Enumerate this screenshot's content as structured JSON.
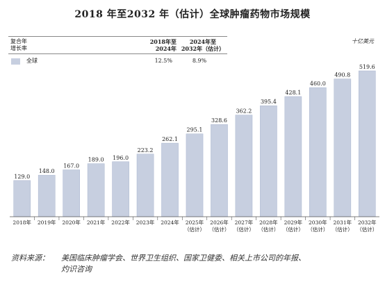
{
  "title": "2018 年至2032 年（估计）全球肿瘤药物市场规模",
  "unit": "十亿美元",
  "cagr_table": {
    "header_line1": "复合年",
    "header_line2": "增长率",
    "col1_line1": "2018年至",
    "col1_line2": "2024年",
    "col2_line1": "2024年至",
    "col2_line2": "2032年（估计）",
    "row_name": "全球",
    "row_val1": "12.5%",
    "row_val2": "8.9%"
  },
  "colors": {
    "bar": "#c7cfe0",
    "bar_edge": "#aab6cf",
    "axis": "#555555"
  },
  "chart_data": {
    "type": "bar",
    "categories": [
      {
        "l1": "2018年",
        "l2": ""
      },
      {
        "l1": "2019年",
        "l2": ""
      },
      {
        "l1": "2020年",
        "l2": ""
      },
      {
        "l1": "2021年",
        "l2": ""
      },
      {
        "l1": "2022年",
        "l2": ""
      },
      {
        "l1": "2023年",
        "l2": ""
      },
      {
        "l1": "2024年",
        "l2": ""
      },
      {
        "l1": "2025年",
        "l2": "（估计）"
      },
      {
        "l1": "2026年",
        "l2": "（估计）"
      },
      {
        "l1": "2027年",
        "l2": "（估计）"
      },
      {
        "l1": "2028年",
        "l2": "（估计）"
      },
      {
        "l1": "2029年",
        "l2": "（估计）"
      },
      {
        "l1": "2030年",
        "l2": "（估计）"
      },
      {
        "l1": "2031年",
        "l2": "（估计）"
      },
      {
        "l1": "2032年",
        "l2": "（估计）"
      }
    ],
    "values": [
      129.0,
      148.0,
      167.0,
      189.0,
      196.0,
      223.2,
      262.1,
      295.1,
      328.6,
      362.2,
      395.4,
      428.1,
      460.0,
      490.8,
      519.6
    ],
    "labels": [
      "129.0",
      "148.0",
      "167.0",
      "189.0",
      "196.0",
      "223.2",
      "262.1",
      "295.1",
      "328.6",
      "362.2",
      "395.4",
      "428.1",
      "460.0",
      "490.8",
      "519.6"
    ],
    "ylim": [
      0,
      519.6
    ],
    "grid": false
  },
  "source": {
    "label": "资料来源：",
    "line1": "美国临床肿瘤学会、世界卫生组织、国家卫健委、相关上市公司的年报、",
    "line2": "灼识咨询"
  }
}
